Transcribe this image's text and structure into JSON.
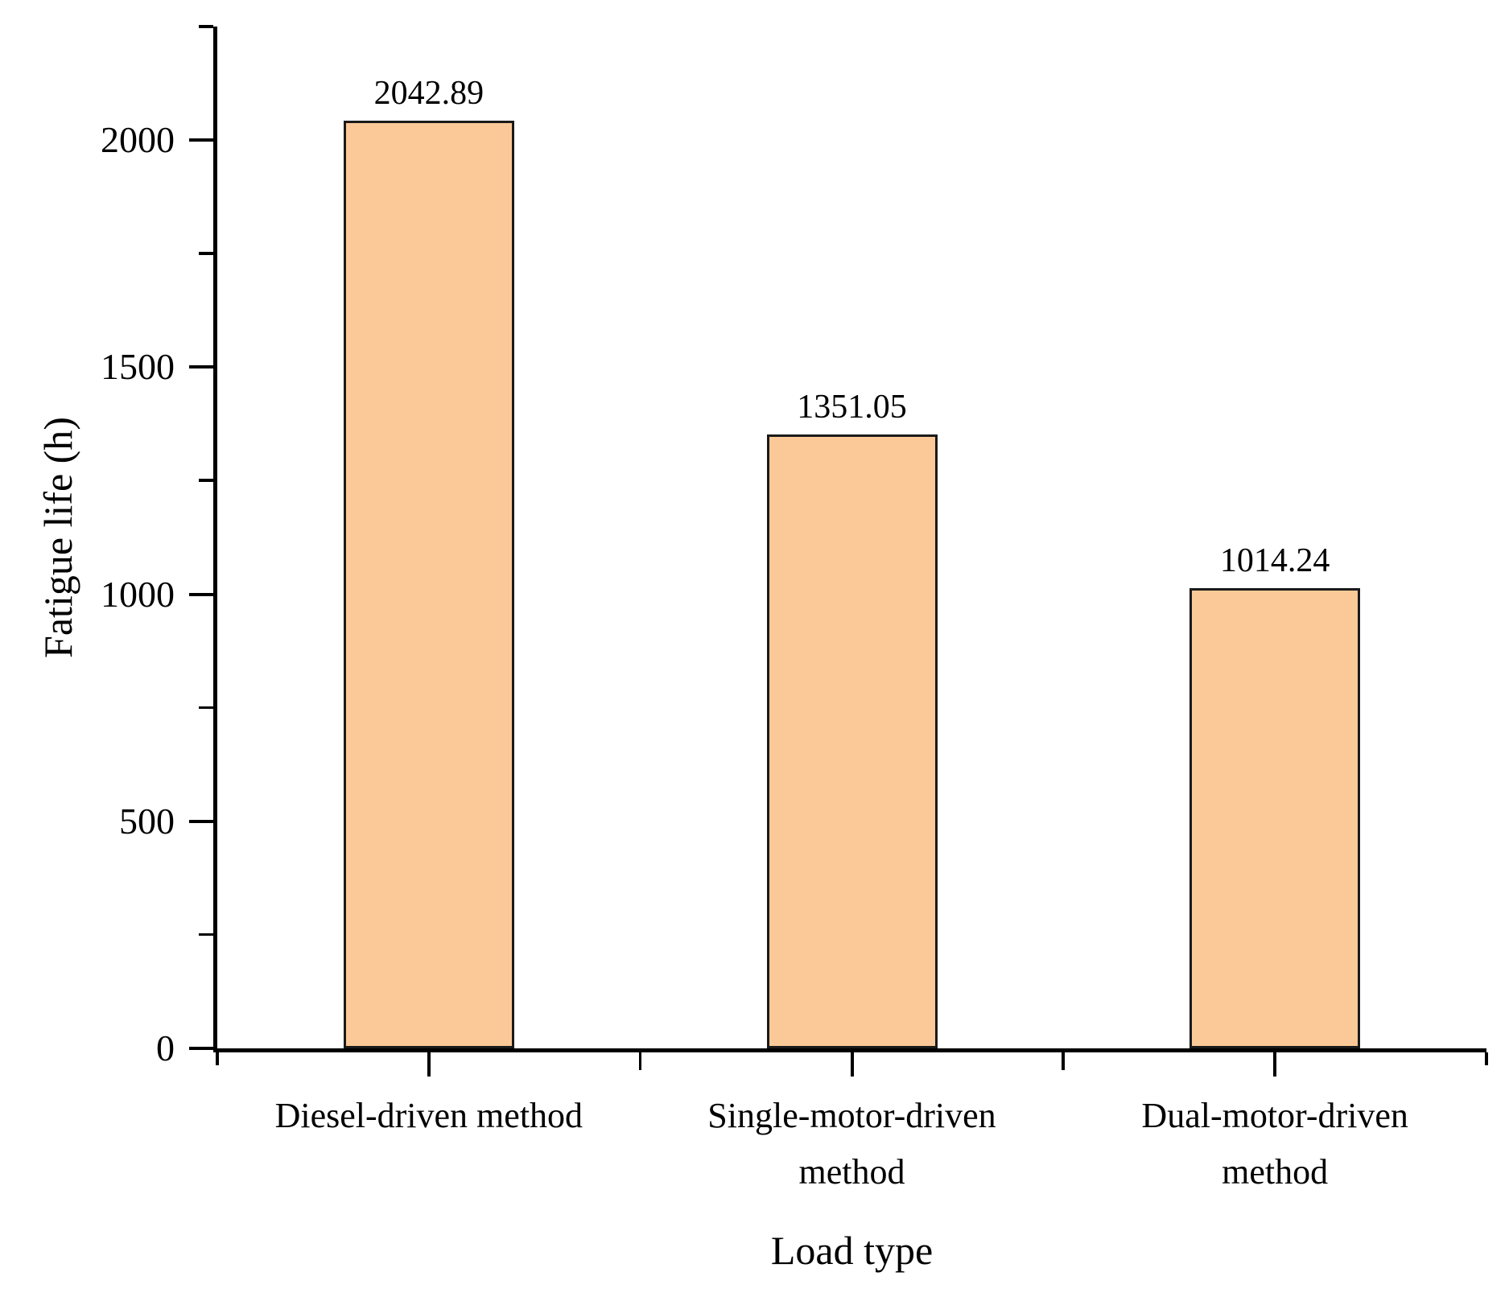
{
  "chart_data": {
    "type": "bar",
    "title": "",
    "xlabel": "Load type",
    "ylabel": "Fatigue life (h)",
    "categories": [
      "Diesel-driven method",
      "Single-motor-driven method",
      "Dual-motor-driven method"
    ],
    "category_label_lines": [
      [
        "Diesel-driven method"
      ],
      [
        "Single-motor-driven",
        "method"
      ],
      [
        "Dual-motor-driven",
        "method"
      ]
    ],
    "values": [
      2042.89,
      1351.05,
      1014.24
    ],
    "value_labels": [
      "2042.89",
      "1351.05",
      "1014.24"
    ],
    "ylim": [
      0,
      2250
    ],
    "y_major_ticks": [
      0,
      500,
      1000,
      1500,
      2000
    ],
    "y_major_tick_labels": [
      "0",
      "500",
      "1000",
      "1500",
      "2000"
    ],
    "y_minor_ticks": [
      250,
      750,
      1250,
      1750,
      2250
    ],
    "grid": false,
    "legend": "none",
    "colors": {
      "bar_fill": "#FBC997",
      "bar_border": "#1A1A1A",
      "axis": "#000000",
      "text": "#000000",
      "background": "#FFFFFF"
    }
  }
}
